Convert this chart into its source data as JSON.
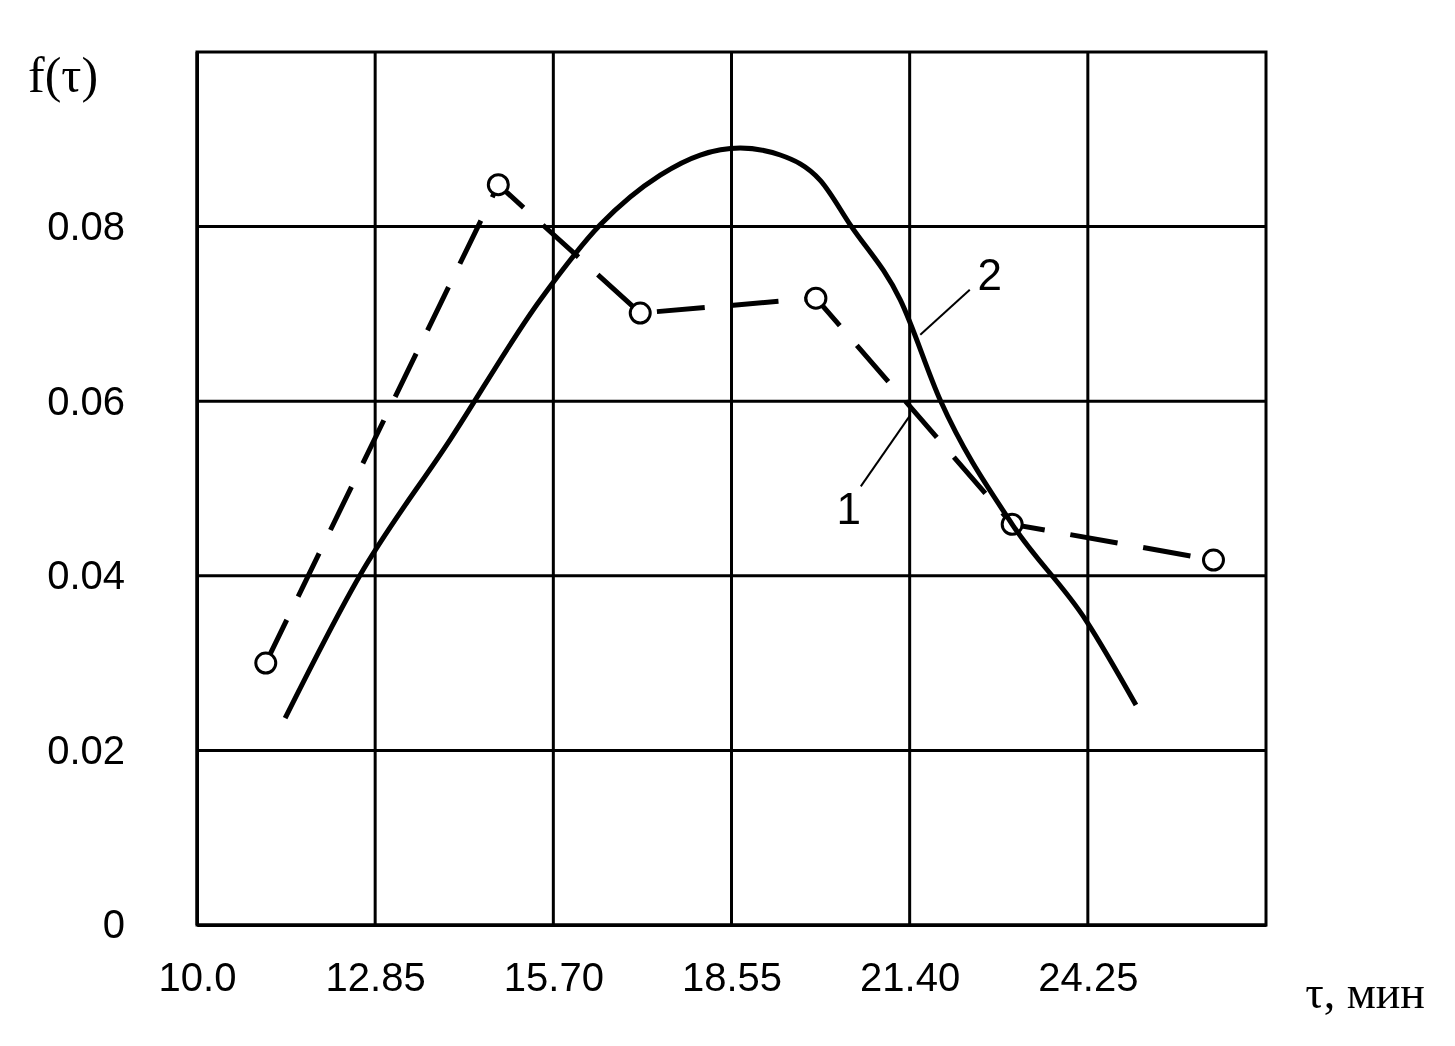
{
  "chart_data": {
    "type": "line",
    "xlabel": "τ, мин",
    "ylabel": "f(τ)",
    "xlim": [
      10,
      27.1
    ],
    "xticks": [
      {
        "value": 10,
        "label": "10.0"
      },
      12.85,
      {
        "value": 15.7,
        "label": "15.70"
      },
      18.55,
      {
        "value": 21.4,
        "label": "21.40"
      },
      24.25
    ],
    "ylim": [
      0,
      0.1
    ],
    "yticks": [
      0,
      0.02,
      0.04,
      0.06,
      0.08
    ],
    "grid": true,
    "series": [
      {
        "color": "#000000",
        "line_style": "dashed",
        "marker": "circle",
        "x": [
          11.1,
          14.82,
          17.09,
          19.9,
          23.04,
          26.26
        ],
        "values": [
          0.03,
          0.0848,
          0.0701,
          0.0718,
          0.0459,
          0.0418
        ]
      },
      {
        "color": "#000000",
        "line_style": "solid",
        "marker": "none",
        "x": [
          11.41,
          12.61,
          14.05,
          15.49,
          16.45,
          17.41,
          18.05,
          18.69,
          19.33,
          19.97,
          20.45,
          21.25,
          21.89,
          23.04,
          24.22,
          25.02
        ],
        "values": [
          0.0237,
          0.0401,
          0.0556,
          0.0716,
          0.0802,
          0.0859,
          0.0882,
          0.089,
          0.0882,
          0.0853,
          0.0802,
          0.0716,
          0.0601,
          0.0459,
          0.0349,
          0.0252
        ]
      }
    ],
    "annotations": [
      {
        "text": "1",
        "x": 21.41,
        "y": 0.0584
      },
      {
        "text": "2",
        "x": 21.57,
        "y": 0.0676
      }
    ]
  }
}
